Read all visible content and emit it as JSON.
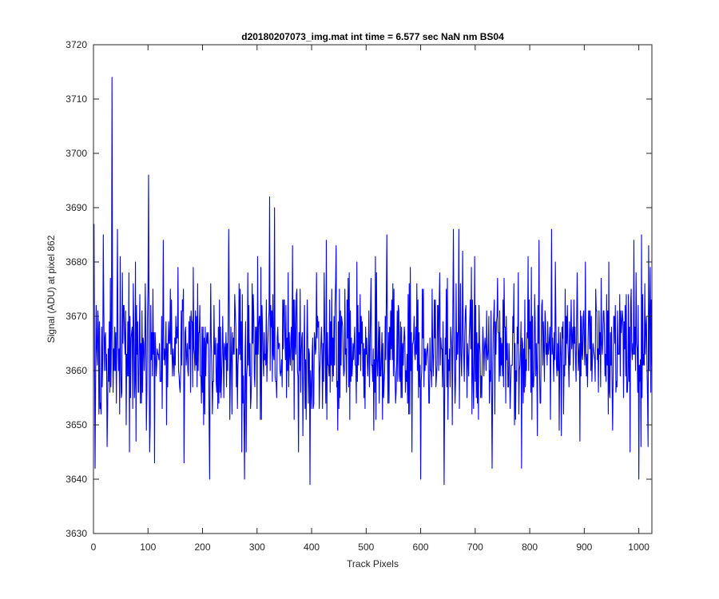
{
  "chart_data": {
    "type": "line",
    "title": "d20180207073_img.mat int time = 6.577 sec  NaN nm BS04",
    "xlabel": "Track Pixels",
    "ylabel": "Signal (ADU) at pixel 862",
    "xlim": [
      0,
      1024
    ],
    "ylim": [
      3630,
      3720
    ],
    "xticks": [
      0,
      100,
      200,
      300,
      400,
      500,
      600,
      700,
      800,
      900,
      1000
    ],
    "yticks": [
      3630,
      3640,
      3650,
      3660,
      3670,
      3680,
      3690,
      3700,
      3710,
      3720
    ],
    "grid": false,
    "legend": "none",
    "series": [
      {
        "color": "#0000ff",
        "x_start": 1,
        "x_step": 1,
        "mean": 3664,
        "min": 3639,
        "max": 3714,
        "noise_std": 7.3,
        "peaks": [
          {
            "x": 1,
            "y": 3687
          },
          {
            "x": 3,
            "y": 3642
          },
          {
            "x": 8,
            "y": 3671
          },
          {
            "x": 12,
            "y": 3653
          },
          {
            "x": 18,
            "y": 3685
          },
          {
            "x": 25,
            "y": 3646
          },
          {
            "x": 34,
            "y": 3714
          },
          {
            "x": 40,
            "y": 3660
          },
          {
            "x": 44,
            "y": 3686
          },
          {
            "x": 48,
            "y": 3652
          },
          {
            "x": 66,
            "y": 3645
          },
          {
            "x": 77,
            "y": 3680
          },
          {
            "x": 97,
            "y": 3649
          },
          {
            "x": 101,
            "y": 3696
          },
          {
            "x": 103,
            "y": 3645
          },
          {
            "x": 112,
            "y": 3643
          },
          {
            "x": 128,
            "y": 3684
          },
          {
            "x": 166,
            "y": 3643
          },
          {
            "x": 213,
            "y": 3640
          },
          {
            "x": 248,
            "y": 3686
          },
          {
            "x": 277,
            "y": 3640
          },
          {
            "x": 323,
            "y": 3692
          },
          {
            "x": 332,
            "y": 3690
          },
          {
            "x": 397,
            "y": 3639
          },
          {
            "x": 445,
            "y": 3683
          },
          {
            "x": 538,
            "y": 3685
          },
          {
            "x": 600,
            "y": 3640
          },
          {
            "x": 643,
            "y": 3639
          },
          {
            "x": 660,
            "y": 3686
          },
          {
            "x": 670,
            "y": 3686
          },
          {
            "x": 731,
            "y": 3642
          },
          {
            "x": 785,
            "y": 3642
          },
          {
            "x": 840,
            "y": 3686
          },
          {
            "x": 902,
            "y": 3680
          },
          {
            "x": 1000,
            "y": 3640
          },
          {
            "x": 1005,
            "y": 3685
          },
          {
            "x": 1017,
            "y": 3646
          },
          {
            "x": 1018,
            "y": 3683
          }
        ]
      }
    ]
  }
}
